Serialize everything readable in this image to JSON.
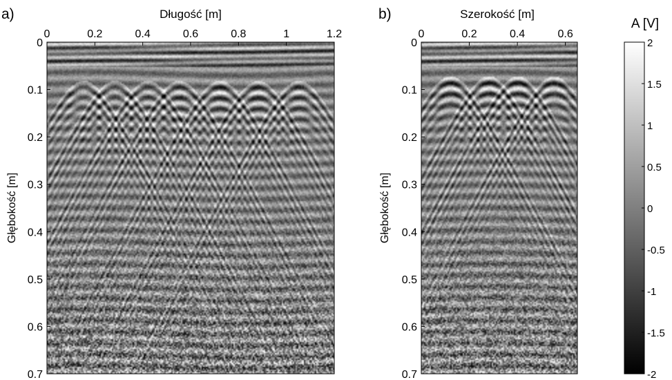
{
  "chart_data": [
    {
      "type": "heatmap",
      "panel_label": "a)",
      "title": "",
      "xlabel": "Długość [m]",
      "ylabel": "Głębokość [m]",
      "xlim": [
        0,
        1.2
      ],
      "ylim": [
        0,
        0.7
      ],
      "xticks": [
        "0",
        "0.2",
        "0.4",
        "0.6",
        "0.8",
        "1",
        "1.2"
      ],
      "yticks": [
        "0",
        "0.1",
        "0.2",
        "0.3",
        "0.4",
        "0.5",
        "0.6",
        "0.7"
      ],
      "colormap": "gray",
      "hyperbola_apices_x": [
        0.15,
        0.28,
        0.42,
        0.55,
        0.72,
        0.88,
        1.05
      ],
      "hyperbola_apex_depth": 0.1
    },
    {
      "type": "heatmap",
      "panel_label": "b)",
      "title": "",
      "xlabel": "Szerokość [m]",
      "ylabel": "Głębokość [m]",
      "xlim": [
        0,
        0.65
      ],
      "ylim": [
        0,
        0.7
      ],
      "xticks": [
        "0",
        "0.2",
        "0.4",
        "0.6"
      ],
      "yticks": [
        "0",
        "0.1",
        "0.2",
        "0.3",
        "0.4",
        "0.5",
        "0.6",
        "0.7"
      ],
      "colormap": "gray",
      "hyperbola_apices_x": [
        0.12,
        0.28,
        0.4,
        0.55
      ],
      "hyperbola_apex_depth": 0.09
    }
  ],
  "colorbar": {
    "label": "A [V]",
    "range": [
      -2,
      2
    ],
    "ticks": [
      "2",
      "1.5",
      "1",
      "0.5",
      "0",
      "-0.5",
      "-1",
      "-1.5",
      "-2"
    ],
    "colors": [
      "#000000",
      "#ffffff"
    ]
  }
}
